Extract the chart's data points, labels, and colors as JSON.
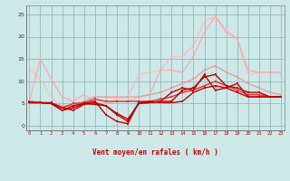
{
  "bg_color": "#cce8e8",
  "grid_color": "#99bbbb",
  "xlabel": "Vent moyen/en rafales ( km/h )",
  "xlabel_color": "#cc0000",
  "yticks": [
    0,
    5,
    10,
    15,
    20,
    25
  ],
  "xticks": [
    0,
    1,
    2,
    3,
    4,
    5,
    6,
    7,
    8,
    9,
    10,
    11,
    12,
    13,
    14,
    15,
    16,
    17,
    18,
    19,
    20,
    21,
    22,
    23
  ],
  "ylim": [
    -1,
    27
  ],
  "xlim": [
    -0.3,
    23.3
  ],
  "series": [
    {
      "x": [
        0,
        1,
        2,
        3,
        4,
        5,
        6,
        7,
        8,
        9,
        10,
        11,
        12,
        13,
        14,
        15,
        16,
        17,
        18,
        19,
        20,
        21,
        22,
        23
      ],
      "y": [
        13.0,
        10.5,
        6.5,
        4.0,
        5.0,
        5.5,
        6.5,
        6.5,
        6.0,
        6.5,
        11.5,
        12.0,
        12.5,
        15.5,
        15.5,
        18.0,
        23.5,
        24.5,
        21.5,
        19.5,
        11.5,
        12.0,
        12.0,
        12.0
      ],
      "color": "#ffbbbb",
      "lw": 0.9,
      "marker": "s",
      "ms": 1.8
    },
    {
      "x": [
        0,
        1,
        2,
        3,
        4,
        5,
        6,
        7,
        8,
        9,
        10,
        11,
        12,
        13,
        14,
        15,
        16,
        17,
        18,
        19,
        20,
        21,
        22,
        23
      ],
      "y": [
        5.5,
        15.0,
        10.5,
        6.5,
        5.5,
        7.0,
        5.0,
        5.0,
        5.5,
        5.5,
        6.5,
        7.0,
        12.5,
        12.5,
        12.0,
        15.5,
        21.0,
        24.5,
        21.0,
        19.5,
        12.5,
        12.0,
        12.0,
        12.0
      ],
      "color": "#ffaaaa",
      "lw": 0.9,
      "marker": "s",
      "ms": 1.8
    },
    {
      "x": [
        0,
        1,
        2,
        3,
        4,
        5,
        6,
        7,
        8,
        9,
        10,
        11,
        12,
        13,
        14,
        15,
        16,
        17,
        18,
        19,
        20,
        21,
        22,
        23
      ],
      "y": [
        5.5,
        5.2,
        5.0,
        4.5,
        4.5,
        5.5,
        6.5,
        6.5,
        6.5,
        6.5,
        6.5,
        7.0,
        7.5,
        8.5,
        9.5,
        10.5,
        12.5,
        13.5,
        12.0,
        11.0,
        9.5,
        8.5,
        7.5,
        7.0
      ],
      "color": "#ee9999",
      "lw": 0.9,
      "marker": "s",
      "ms": 1.8
    },
    {
      "x": [
        0,
        1,
        2,
        3,
        4,
        5,
        6,
        7,
        8,
        9,
        10,
        11,
        12,
        13,
        14,
        15,
        16,
        17,
        18,
        19,
        20,
        21,
        22,
        23
      ],
      "y": [
        5.5,
        5.2,
        5.0,
        4.0,
        5.0,
        5.2,
        6.0,
        5.5,
        5.5,
        5.5,
        5.5,
        5.5,
        6.0,
        6.5,
        7.5,
        8.0,
        9.0,
        10.0,
        9.0,
        8.0,
        7.0,
        7.0,
        6.5,
        6.5
      ],
      "color": "#dd3333",
      "lw": 1.0,
      "marker": "s",
      "ms": 1.8
    },
    {
      "x": [
        0,
        1,
        2,
        3,
        4,
        5,
        6,
        7,
        8,
        9,
        10,
        11,
        12,
        13,
        14,
        15,
        16,
        17,
        18,
        19,
        20,
        21,
        22,
        23
      ],
      "y": [
        5.2,
        5.2,
        5.2,
        4.1,
        3.5,
        4.8,
        5.2,
        4.5,
        2.5,
        1.0,
        5.2,
        5.2,
        5.5,
        7.5,
        8.5,
        8.0,
        11.5,
        8.0,
        8.5,
        9.5,
        6.5,
        6.5,
        6.5,
        6.5
      ],
      "color": "#cc0000",
      "lw": 1.0,
      "marker": "s",
      "ms": 1.8
    },
    {
      "x": [
        0,
        1,
        2,
        3,
        4,
        5,
        6,
        7,
        8,
        9,
        10,
        11,
        12,
        13,
        14,
        15,
        16,
        17,
        18,
        19,
        20,
        21,
        22,
        23
      ],
      "y": [
        5.2,
        5.2,
        5.0,
        3.5,
        4.0,
        5.0,
        5.5,
        2.5,
        1.0,
        0.5,
        5.2,
        5.5,
        5.2,
        5.2,
        5.5,
        7.5,
        8.5,
        9.0,
        8.5,
        7.5,
        6.5,
        6.5,
        6.5,
        6.5
      ],
      "color": "#cc0000",
      "lw": 1.0,
      "marker": "s",
      "ms": 1.8
    },
    {
      "x": [
        0,
        1,
        2,
        3,
        4,
        5,
        6,
        7,
        8,
        9,
        10,
        11,
        12,
        13,
        14,
        15,
        16,
        17,
        18,
        19,
        20,
        21,
        22,
        23
      ],
      "y": [
        5.2,
        5.2,
        5.0,
        3.5,
        4.5,
        5.0,
        4.8,
        4.5,
        2.8,
        1.5,
        5.0,
        5.2,
        5.5,
        5.5,
        8.0,
        8.5,
        11.0,
        11.5,
        9.0,
        8.5,
        7.5,
        7.5,
        6.5,
        6.5
      ],
      "color": "#bb0000",
      "lw": 1.0,
      "marker": "s",
      "ms": 1.8
    }
  ],
  "arrow_symbols": [
    "←",
    "←",
    "←",
    "←",
    "←",
    "←",
    "←",
    "←",
    "←",
    "↓",
    "↑",
    "→",
    "↗",
    "↗",
    "↗",
    "→",
    "→",
    "↗",
    "→",
    "→",
    "→",
    "→",
    "↗",
    "↗"
  ]
}
